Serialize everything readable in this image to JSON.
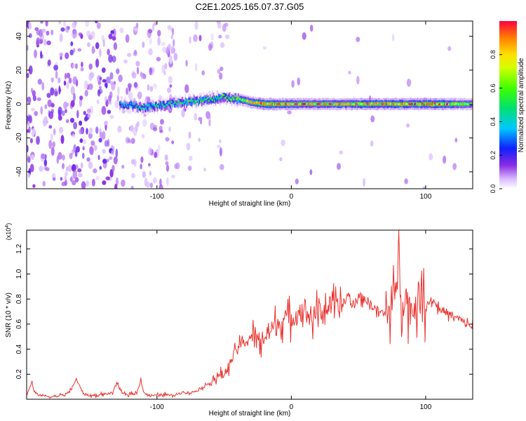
{
  "title": "C2E1.2025.165.07.37.G05",
  "chart_data": [
    {
      "type": "heatmap",
      "xlabel": "Height of straight line (km)",
      "ylabel": "Frequency (Hz)",
      "xlim": [
        -197,
        135
      ],
      "ylim": [
        -50,
        49
      ],
      "x_ticks": [
        -100,
        0,
        100
      ],
      "x_tick_labels": [
        "-100",
        "0",
        "100"
      ],
      "y_ticks": [
        -40,
        -20,
        0,
        20,
        40
      ],
      "y_tick_labels": [
        "-40",
        "-20",
        "0",
        "20",
        "40"
      ],
      "grid": false,
      "colorbar": {
        "label": "Normalized spectral amplitude",
        "range": [
          0,
          1
        ],
        "ticks": [
          0.0,
          0.2,
          0.4,
          0.6,
          0.8
        ],
        "tick_labels": [
          "0.0",
          "0.2",
          "0.4",
          "0.6",
          "0.8"
        ],
        "colormap": "rainbow (violet → blue → cyan → green → yellow → red)"
      },
      "ridge": {
        "description": "Narrow spectral line centred near 0 Hz",
        "points": [
          {
            "x": -128,
            "y": 0,
            "amp": 0.35
          },
          {
            "x": -110,
            "y": -2,
            "amp": 0.45
          },
          {
            "x": -90,
            "y": 0,
            "amp": 0.45
          },
          {
            "x": -70,
            "y": 2,
            "amp": 0.5
          },
          {
            "x": -50,
            "y": 4,
            "amp": 0.5
          },
          {
            "x": -40,
            "y": 3,
            "amp": 0.6
          },
          {
            "x": -30,
            "y": 1,
            "amp": 0.75
          },
          {
            "x": -20,
            "y": 0,
            "amp": 0.95
          },
          {
            "x": 0,
            "y": 0,
            "amp": 0.75
          },
          {
            "x": 30,
            "y": 0,
            "amp": 0.75
          },
          {
            "x": 60,
            "y": 0,
            "amp": 0.8
          },
          {
            "x": 90,
            "y": 0,
            "amp": 0.85
          },
          {
            "x": 105,
            "y": 0,
            "amp": 0.95
          },
          {
            "x": 135,
            "y": 0,
            "amp": 0.6
          }
        ]
      }
    },
    {
      "type": "line",
      "xlabel": "Height of straight line (km)",
      "ylabel": "SNR (10 * v/v)",
      "y_scale_label": "(x10",
      "y_scale_exponent": "4",
      "xlim": [
        -197,
        135
      ],
      "ylim": [
        0,
        1.35
      ],
      "x_ticks": [
        -100,
        0,
        100
      ],
      "x_tick_labels": [
        "-100",
        "0",
        "100"
      ],
      "y_ticks": [
        0.2,
        0.4,
        0.6,
        0.8,
        1.0,
        1.2
      ],
      "y_tick_labels": [
        "0.2",
        "0.4",
        "0.6",
        "0.8",
        "1.0",
        "1.2"
      ],
      "grid": false,
      "color": "#e8322e",
      "series": [
        {
          "x": [
            -197,
            -193,
            -192,
            -190,
            -185,
            -180,
            -170,
            -165,
            -160,
            -157,
            -154,
            -150,
            -145,
            -140,
            -133,
            -130,
            -128,
            -125,
            -120,
            -115,
            -112,
            -110,
            -108,
            -105,
            -100,
            -95,
            -90,
            -85,
            -80,
            -75,
            -70,
            -65,
            -60,
            -55,
            -50,
            -45,
            -40,
            -35,
            -30,
            -25,
            -20,
            -15,
            -10,
            -5,
            0,
            5,
            10,
            15,
            20,
            25,
            30,
            35,
            40,
            43,
            45,
            50,
            55,
            60,
            65,
            70,
            75,
            78,
            80,
            82,
            85,
            90,
            95,
            100,
            105,
            110,
            115,
            120,
            125,
            130,
            135
          ],
          "y": [
            0.03,
            0.14,
            0.08,
            0.04,
            0.03,
            0.02,
            0.03,
            0.06,
            0.16,
            0.09,
            0.04,
            0.03,
            0.03,
            0.04,
            0.05,
            0.14,
            0.08,
            0.04,
            0.04,
            0.05,
            0.16,
            0.06,
            0.04,
            0.03,
            0.03,
            0.04,
            0.03,
            0.04,
            0.06,
            0.05,
            0.07,
            0.1,
            0.14,
            0.18,
            0.2,
            0.3,
            0.42,
            0.45,
            0.5,
            0.46,
            0.5,
            0.55,
            0.6,
            0.65,
            0.64,
            0.7,
            0.73,
            0.64,
            0.7,
            0.72,
            0.75,
            0.72,
            0.78,
            0.85,
            0.72,
            0.82,
            0.8,
            0.75,
            0.7,
            0.68,
            0.75,
            0.85,
            1.35,
            0.8,
            0.78,
            0.7,
            0.82,
            0.75,
            0.8,
            0.72,
            0.7,
            0.66,
            0.64,
            0.6,
            0.58
          ]
        }
      ]
    }
  ]
}
